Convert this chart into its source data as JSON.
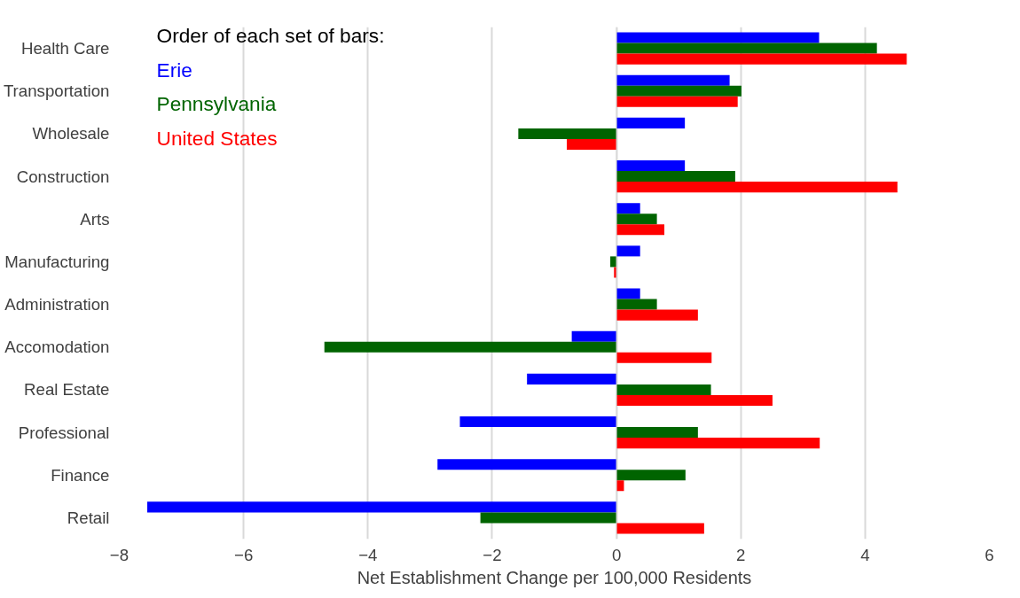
{
  "chart_data": {
    "type": "bar",
    "orientation": "horizontal",
    "xlabel": "Net Establishment Change per 100,000 Residents",
    "legend_title": "Order of each set of bars:",
    "legend": "top left",
    "grid": "x",
    "categories": [
      "Health Care",
      "Transportation",
      "Wholesale",
      "Construction",
      "Arts",
      "Manufacturing",
      "Administration",
      "Accomodation",
      "Real Estate",
      "Professional",
      "Finance",
      "Retail"
    ],
    "series": [
      {
        "name": "Erie",
        "color": "#0000ff",
        "values": [
          3.26,
          1.82,
          1.1,
          1.1,
          0.38,
          0.38,
          0.38,
          -0.72,
          -1.44,
          -2.52,
          -2.88,
          -7.55
        ]
      },
      {
        "name": "Pennsylvania",
        "color": "#006400",
        "values": [
          4.19,
          2.01,
          -1.58,
          1.91,
          0.65,
          -0.1,
          0.65,
          -4.7,
          1.52,
          1.31,
          1.11,
          -2.19
        ]
      },
      {
        "name": "United States",
        "color": "#ff0000",
        "values": [
          4.67,
          1.95,
          -0.8,
          4.52,
          0.77,
          -0.04,
          1.31,
          1.53,
          2.51,
          3.27,
          0.12,
          1.41
        ]
      }
    ],
    "xlim": [
      -8,
      6
    ],
    "xticks": [
      -8,
      -6,
      -4,
      -2,
      0,
      2,
      4,
      6
    ]
  }
}
